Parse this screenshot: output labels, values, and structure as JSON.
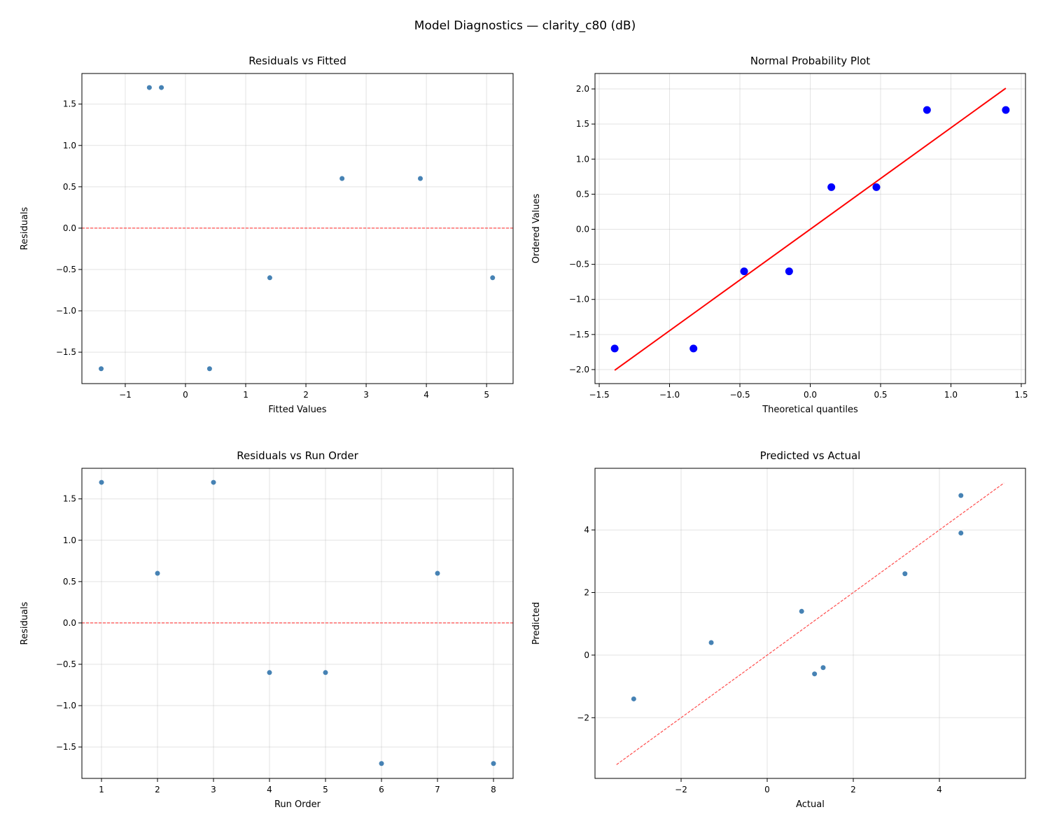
{
  "suptitle": "Model Diagnostics — clarity_c80 (dB)",
  "chart_data": [
    {
      "type": "scatter",
      "title": "Residuals vs Fitted",
      "xlabel": "Fitted Values",
      "ylabel": "Residuals",
      "xlim": [
        -1.72,
        5.44
      ],
      "ylim": [
        -1.88,
        1.87
      ],
      "xticks": [
        "−1",
        "0",
        "1",
        "2",
        "3",
        "4",
        "5"
      ],
      "yticks": [
        "−1.5",
        "−1.0",
        "−0.5",
        "0.0",
        "0.5",
        "1.0",
        "1.5"
      ],
      "grid": true,
      "x": [
        -1.4,
        -0.6,
        -0.4,
        0.4,
        1.4,
        2.6,
        3.9,
        5.1
      ],
      "y": [
        -1.7,
        1.7,
        1.7,
        -1.7,
        -0.6,
        0.6,
        0.6,
        -0.6
      ],
      "point_color": "#4682b4",
      "reference_line": {
        "kind": "horizontal",
        "y": 0,
        "style": "dashed",
        "color": "#ff4d4d"
      }
    },
    {
      "type": "scatter",
      "title": "Normal Probability Plot",
      "xlabel": "Theoretical quantiles",
      "ylabel": "Ordered Values",
      "xlim": [
        -1.53,
        1.53
      ],
      "ylim": [
        -2.2,
        2.22
      ],
      "xticks": [
        "−1.5",
        "−1.0",
        "−0.5",
        "0.0",
        "0.5",
        "1.0",
        "1.5"
      ],
      "yticks": [
        "−2.0",
        "−1.5",
        "−1.0",
        "−0.5",
        "0.0",
        "0.5",
        "1.0",
        "1.5",
        "2.0"
      ],
      "grid": true,
      "x": [
        -1.39,
        -0.83,
        -0.47,
        -0.15,
        0.15,
        0.47,
        0.83,
        1.39
      ],
      "y": [
        -1.7,
        -1.7,
        -0.6,
        -0.6,
        0.6,
        0.6,
        1.7,
        1.7
      ],
      "point_color": "#0000ff",
      "reference_line": {
        "kind": "segment",
        "x": [
          -1.39,
          1.39
        ],
        "y": [
          -2.01,
          2.01
        ],
        "style": "solid",
        "color": "#ff0000"
      }
    },
    {
      "type": "scatter",
      "title": "Residuals vs Run Order",
      "xlabel": "Run Order",
      "ylabel": "Residuals",
      "xlim": [
        0.65,
        8.35
      ],
      "ylim": [
        -1.88,
        1.87
      ],
      "xticks": [
        "1",
        "2",
        "3",
        "4",
        "5",
        "6",
        "7",
        "8"
      ],
      "yticks": [
        "−1.5",
        "−1.0",
        "−0.5",
        "0.0",
        "0.5",
        "1.0",
        "1.5"
      ],
      "grid": true,
      "x": [
        1,
        2,
        3,
        4,
        5,
        6,
        7,
        8
      ],
      "y": [
        1.7,
        0.6,
        1.7,
        -0.6,
        -0.6,
        -1.7,
        0.6,
        -1.7
      ],
      "point_color": "#4682b4",
      "reference_line": {
        "kind": "horizontal",
        "y": 0,
        "style": "dashed",
        "color": "#ff4d4d"
      }
    },
    {
      "type": "scatter",
      "title": "Predicted vs Actual",
      "xlabel": "Actual",
      "ylabel": "Predicted",
      "xlim": [
        -4.0,
        6.0
      ],
      "ylim": [
        -3.94,
        5.97
      ],
      "xticks": [
        "−2",
        "0",
        "2",
        "4"
      ],
      "yticks": [
        "−2",
        "0",
        "2",
        "4"
      ],
      "grid": true,
      "x": [
        -3.1,
        -1.3,
        0.8,
        1.1,
        1.3,
        3.2,
        4.5,
        4.5
      ],
      "y": [
        -1.4,
        0.4,
        1.4,
        -0.6,
        -0.4,
        2.6,
        3.9,
        5.1
      ],
      "point_color": "#4682b4",
      "reference_line": {
        "kind": "segment",
        "x": [
          -3.5,
          5.5
        ],
        "y": [
          -3.5,
          5.5
        ],
        "style": "dashed",
        "color": "#ff4d4d"
      }
    }
  ]
}
